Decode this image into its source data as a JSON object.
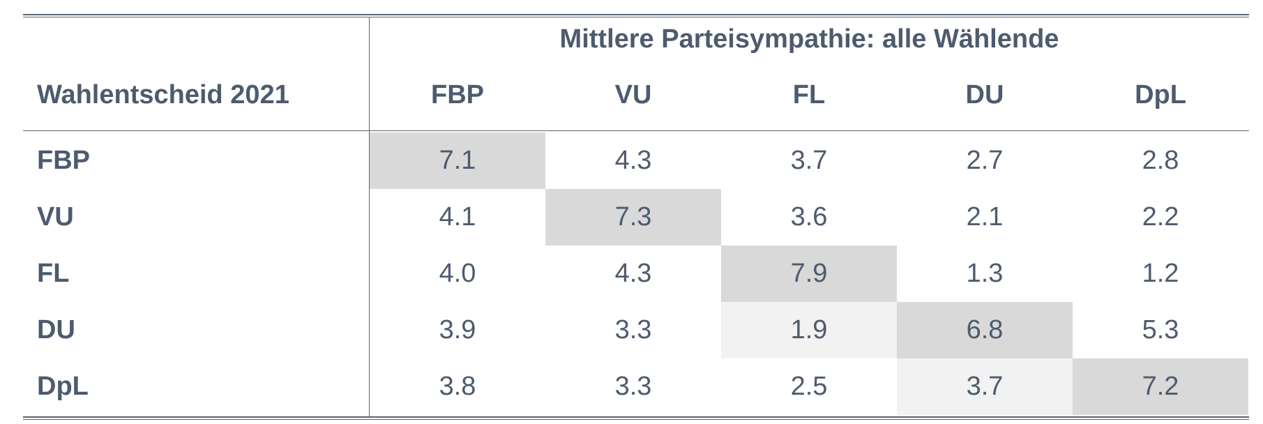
{
  "table": {
    "group_header": "Mittlere Parteisympathie: alle Wählende",
    "stub_header": "Wahlentscheid 2021",
    "columns": [
      "FBP",
      "VU",
      "FL",
      "DU",
      "DpL"
    ],
    "rows": [
      {
        "label": "FBP",
        "values": [
          "7.1",
          "4.3",
          "3.7",
          "2.7",
          "2.8"
        ]
      },
      {
        "label": "VU",
        "values": [
          "4.1",
          "7.3",
          "3.6",
          "2.1",
          "2.2"
        ]
      },
      {
        "label": "FL",
        "values": [
          "4.0",
          "4.3",
          "7.9",
          "1.3",
          "1.2"
        ]
      },
      {
        "label": "DU",
        "values": [
          "3.9",
          "3.3",
          "1.9",
          "6.8",
          "5.3"
        ]
      },
      {
        "label": "DpL",
        "values": [
          "3.8",
          "3.3",
          "2.5",
          "3.7",
          "7.2"
        ]
      }
    ]
  },
  "colors": {
    "text": "#4d5b6e",
    "shade_dark": "#d9d9d9",
    "shade_light": "#f2f2f2"
  }
}
